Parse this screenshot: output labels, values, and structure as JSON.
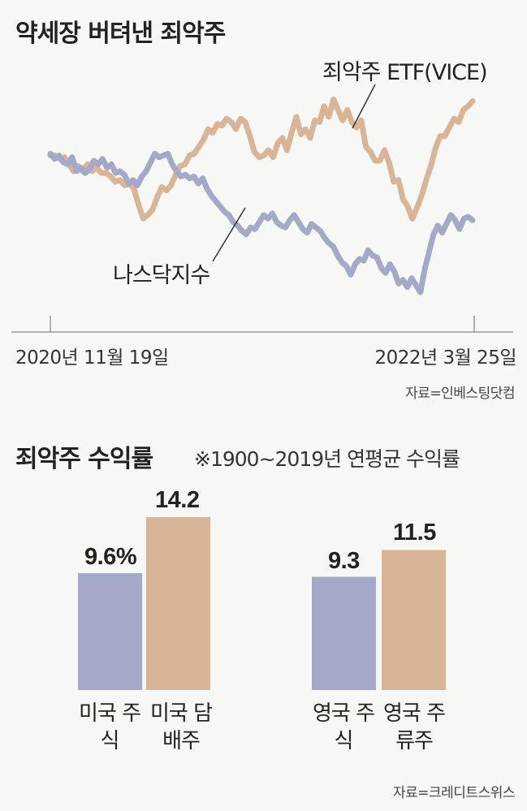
{
  "line_chart": {
    "title": "약세장 버텨낸 죄악주",
    "label_vice": "죄악주 ETF(VICE)",
    "label_nasdaq": "나스닥지수",
    "start_date": "2020년 11월 19일",
    "end_date": "2022년 3월 25일",
    "source": "자료=인베스팅닷컴"
  },
  "bar_chart": {
    "title": "죄악주 수익률",
    "note": "※1900~2019년 연평균 수익률",
    "source": "자료=크레디트스위스"
  },
  "colors": {
    "vice": "#d8b597",
    "nasdaq": "#a3a9c6",
    "axis": "#9a9a9a"
  },
  "chart_data": [
    {
      "type": "line",
      "title": "약세장 버텨낸 죄악주",
      "x_start": "2020-11-19",
      "x_end": "2022-03-25",
      "y_axis_labeled": false,
      "grid": false,
      "series": [
        {
          "name": "죄악주 ETF(VICE)",
          "color": "#d8b597",
          "values": [
            50,
            50,
            48,
            49,
            45,
            41,
            44,
            41,
            45,
            41,
            43,
            40,
            40,
            38,
            35,
            36,
            33,
            34,
            31,
            22,
            14,
            16,
            19,
            26,
            32,
            30,
            33,
            39,
            44,
            45,
            50,
            51,
            55,
            59,
            65,
            63,
            68,
            67,
            71,
            69,
            65,
            71,
            69,
            61,
            52,
            49,
            50,
            53,
            49,
            57,
            60,
            53,
            63,
            72,
            62,
            65,
            60,
            70,
            69,
            78,
            72,
            82,
            76,
            70,
            76,
            69,
            66,
            70,
            55,
            52,
            47,
            47,
            53,
            46,
            35,
            36,
            25,
            21,
            14,
            20,
            27,
            36,
            44,
            54,
            61,
            61,
            66,
            71,
            69,
            76,
            78,
            81
          ]
        },
        {
          "name": "나스닥지수",
          "color": "#a3a9c6",
          "values": [
            51,
            48,
            50,
            46,
            45,
            49,
            41,
            43,
            40,
            42,
            47,
            45,
            48,
            43,
            45,
            40,
            41,
            39,
            34,
            36,
            33,
            38,
            41,
            46,
            51,
            49,
            50,
            51,
            45,
            41,
            38,
            39,
            37,
            38,
            34,
            37,
            31,
            27,
            24,
            21,
            18,
            16,
            12,
            10,
            7,
            5,
            9,
            8,
            12,
            16,
            14,
            17,
            12,
            10,
            9,
            13,
            16,
            12,
            8,
            6,
            11,
            9,
            7,
            3,
            0,
            -2,
            -7,
            -11,
            -13,
            -18,
            -12,
            -9,
            -10,
            -4,
            -7,
            -8,
            -14,
            -17,
            -12,
            -16,
            -23,
            -21,
            -25,
            -20,
            -24,
            -28,
            -15,
            -5,
            5,
            10,
            6,
            11,
            16,
            13,
            8,
            14,
            15,
            13
          ]
        }
      ]
    },
    {
      "type": "bar",
      "title": "죄악주 수익률",
      "subtitle": "※1900~2019년 연평균 수익률",
      "ylim": [
        0,
        14.2
      ],
      "groups": [
        {
          "categories": [
            "미국 주식",
            "미국 담배주"
          ],
          "values": [
            9.6,
            14.2
          ],
          "value_labels": [
            "9.6%",
            "14.2"
          ],
          "colors": [
            "#a3a9c6",
            "#d8b597"
          ]
        },
        {
          "categories": [
            "영국 주식",
            "영국 주류주"
          ],
          "values": [
            9.3,
            11.5
          ],
          "value_labels": [
            "9.3",
            "11.5"
          ],
          "colors": [
            "#a3a9c6",
            "#d8b597"
          ]
        }
      ]
    }
  ]
}
